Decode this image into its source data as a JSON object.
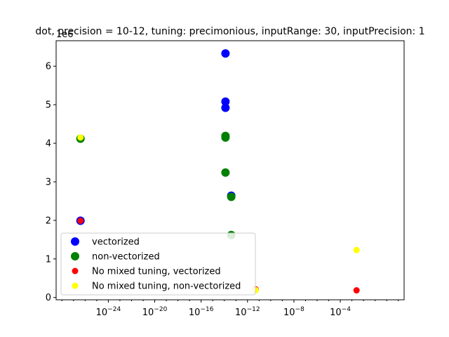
{
  "chart_data": {
    "type": "scatter",
    "title": "dot, precision = 10-12, tuning: precimonious, inputRange: 30, inputPrecision: 1",
    "y_offset_label": "1e6",
    "xscale": "log",
    "xlim_exp": [
      -28.5,
      1.5
    ],
    "ylim": [
      -60000,
      6660000
    ],
    "xticks": [
      {
        "exp": -24,
        "base": "10",
        "sup": "−24"
      },
      {
        "exp": -20,
        "base": "10",
        "sup": "−20"
      },
      {
        "exp": -16,
        "base": "10",
        "sup": "−16"
      },
      {
        "exp": -12,
        "base": "10",
        "sup": "−12"
      },
      {
        "exp": -8,
        "base": "10",
        "sup": "−8"
      },
      {
        "exp": -4,
        "base": "10",
        "sup": "−4"
      }
    ],
    "yticks": [
      {
        "value": 0,
        "label": "0"
      },
      {
        "value": 1000000,
        "label": "1"
      },
      {
        "value": 2000000,
        "label": "2"
      },
      {
        "value": 3000000,
        "label": "3"
      },
      {
        "value": 4000000,
        "label": "4"
      },
      {
        "value": 5000000,
        "label": "5"
      },
      {
        "value": 6000000,
        "label": "6"
      }
    ],
    "legend_position": "lower-left",
    "series": [
      {
        "name": "vectorized",
        "color": "#0000ff",
        "marker_size": "large",
        "points": [
          {
            "x_exp": -26.4,
            "y": 1990000
          },
          {
            "x_exp": -13.9,
            "y": 6330000
          },
          {
            "x_exp": -13.9,
            "y": 5080000
          },
          {
            "x_exp": -13.9,
            "y": 4920000
          },
          {
            "x_exp": -13.4,
            "y": 2640000
          }
        ]
      },
      {
        "name": "non-vectorized",
        "color": "#008000",
        "marker_size": "large",
        "points": [
          {
            "x_exp": -26.4,
            "y": 4120000
          },
          {
            "x_exp": -13.9,
            "y": 4190000
          },
          {
            "x_exp": -13.9,
            "y": 4150000
          },
          {
            "x_exp": -13.9,
            "y": 3240000
          },
          {
            "x_exp": -13.4,
            "y": 2610000
          },
          {
            "x_exp": -13.4,
            "y": 1620000
          }
        ]
      },
      {
        "name": "No mixed tuning, vectorized",
        "color": "#ff0000",
        "marker_size": "small",
        "points": [
          {
            "x_exp": -26.4,
            "y": 1990000
          },
          {
            "x_exp": -11.3,
            "y": 210000
          },
          {
            "x_exp": -2.6,
            "y": 185000
          }
        ]
      },
      {
        "name": "No mixed tuning, non-vectorized",
        "color": "#ffff00",
        "marker_size": "small",
        "points": [
          {
            "x_exp": -26.4,
            "y": 4150000
          },
          {
            "x_exp": -11.3,
            "y": 190000
          },
          {
            "x_exp": -2.6,
            "y": 1230000
          }
        ]
      }
    ]
  }
}
